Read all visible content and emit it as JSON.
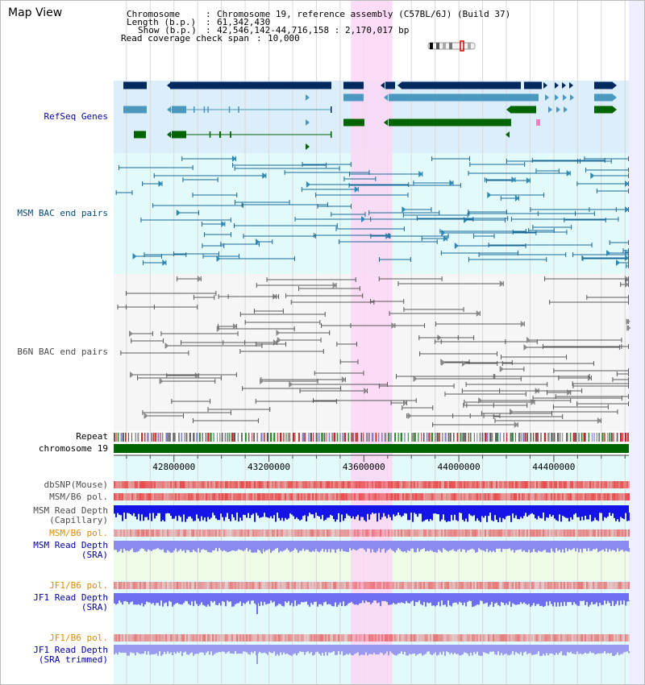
{
  "view_title": "Map View",
  "header": {
    "chromosome_key": "Chromosome",
    "chromosome_value": "Chromosome 19, reference assembly (C57BL/6J) (Build 37)",
    "length_key": "Length (b.p.)",
    "length_value": "61,342,430",
    "show_key": "Show (b.p.)",
    "show_value": "42,546,142-44,716,158 : 2,170,017 bp",
    "coverage_key": "Read coverage check span",
    "coverage_value": "10,000"
  },
  "tracks": {
    "refseq": "RefSeq Genes",
    "msm_bac": "MSM BAC end pairs",
    "b6n_bac": "B6N BAC end pairs",
    "repeat": "Repeat",
    "chromosome": "chromosome 19",
    "dbsnp": "dbSNP(Mouse)",
    "msm_b6_pol_1": "MSM/B6 pol.",
    "msm_read_depth_cap_1": "MSM Read Depth",
    "msm_read_depth_cap_2": "(Capillary)",
    "msm_b6_pol_2": "MSM/B6 pol.",
    "msm_read_depth_sra_1": "MSM Read Depth",
    "msm_read_depth_sra_2": "(SRA)",
    "jf1_b6_pol_1": "JF1/B6 pol.",
    "jf1_read_depth_1": "JF1 Read Depth",
    "jf1_read_depth_2": "(SRA)",
    "jf1_b6_pol_2": "JF1/B6 pol.",
    "jf1_read_depth_trim_1": "JF1 Read Depth",
    "jf1_read_depth_trim_2": "(SRA trimmed)"
  },
  "axis": {
    "start_bp": 42546142,
    "end_bp": 44716158,
    "ticks": [
      {
        "value": 42800000,
        "label": "42800000"
      },
      {
        "value": 43200000,
        "label": "43200000"
      },
      {
        "value": 43600000,
        "label": "43600000"
      },
      {
        "value": 44000000,
        "label": "44000000"
      },
      {
        "value": 44400000,
        "label": "44400000"
      }
    ],
    "highlight_bp": [
      43545000,
      43720000
    ]
  },
  "colors": {
    "refseq_bg": "#dbeefa",
    "msm_bg": "#e2fafa",
    "b6n_bg": "#f6f6f6",
    "lower_bg": "#e2fafa",
    "highlight": "#fcd6f4",
    "gene_dark": "#002a5e",
    "gene_mid": "#4a98c0",
    "gene_green": "#006400",
    "msm_pair": "#1a6a9a",
    "b6n_pair": "#5a5a5a",
    "chromosome_bar": "#006400",
    "pol_red": "#e84040",
    "depth_blue": "#1414e8",
    "depth_light": "#7b7bf2",
    "ideogram_mark": "#e00000"
  }
}
